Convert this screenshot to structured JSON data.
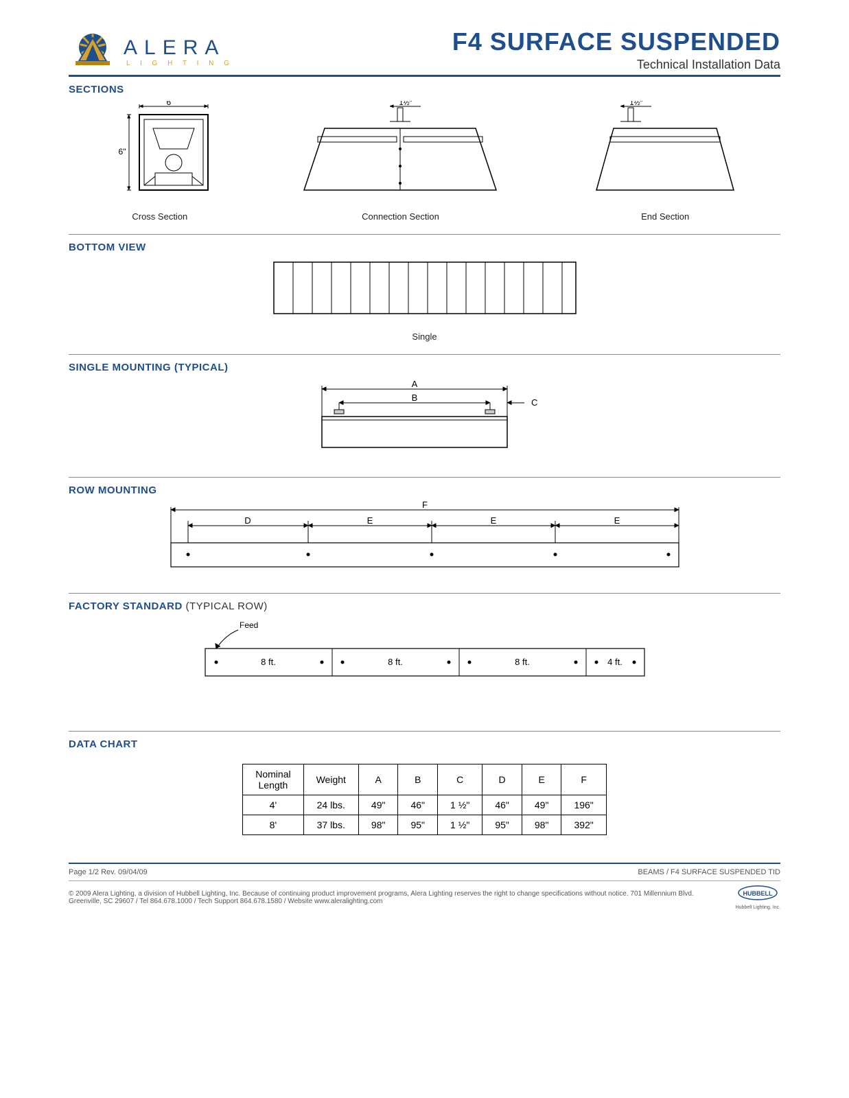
{
  "brand": {
    "name": "ALERA",
    "tagline": "L I G H T I N G"
  },
  "title": "F4 SURFACE SUSPENDED",
  "subtitle": "Technical Installation Data",
  "colors": {
    "brand_blue": "#1f4e8c",
    "gold": "#d6a22b",
    "rule_gray": "#888888",
    "text": "#000000"
  },
  "headings": {
    "sections": "SECTIONS",
    "bottom_view": "BOTTOM VIEW",
    "single_mount": "SINGLE MOUNTING (TYPICAL)",
    "row_mount": "ROW MOUNTING",
    "factory_std": "FACTORY STANDARD",
    "factory_std_sub": " (TYPICAL ROW)",
    "data_chart": "DATA CHART"
  },
  "sections_diagrams": {
    "cross": {
      "caption": "Cross Section",
      "w_label": "6\"",
      "h_label": "6\""
    },
    "connection": {
      "caption": "Connection Section",
      "top_dim": "1½\""
    },
    "end": {
      "caption": "End Section",
      "top_dim": "1½\""
    }
  },
  "bottom_view": {
    "caption": "Single"
  },
  "single_mount": {
    "dimA": "A",
    "dimB": "B",
    "dimC": "C"
  },
  "row_mount": {
    "dimF": "F",
    "dimD": "D",
    "dimE": "E"
  },
  "factory_standard": {
    "feed_label": "Feed",
    "segments": [
      "8 ft.",
      "8 ft.",
      "8 ft.",
      "4 ft."
    ]
  },
  "data_chart": {
    "columns": [
      "Nominal\nLength",
      "Weight",
      "A",
      "B",
      "C",
      "D",
      "E",
      "F"
    ],
    "rows": [
      [
        "4'",
        "24 lbs.",
        "49\"",
        "46\"",
        "1  ½\"",
        "46\"",
        "49\"",
        "196\""
      ],
      [
        "8'",
        "37 lbs.",
        "98\"",
        "95\"",
        "1  ½\"",
        "95\"",
        "98\"",
        "392\""
      ]
    ]
  },
  "footer": {
    "page": "Page 1/2 Rev. 09/04/09",
    "right": "BEAMS / F4 SURFACE SUSPENDED  TID",
    "legal": "© 2009 Alera Lighting, a division of Hubbell Lighting, Inc. Because of continuing product improvement programs, Alera Lighting reserves the right to change specifications without notice. 701 Millennium Blvd. Greenville, SC 29607 / Tel 864.678.1000 / Tech Support 864.678.1580 / Website www.aleralighting.com",
    "hubbell": "HUBBELL",
    "hubbell_sub": "Hubbell Lighting, Inc."
  }
}
